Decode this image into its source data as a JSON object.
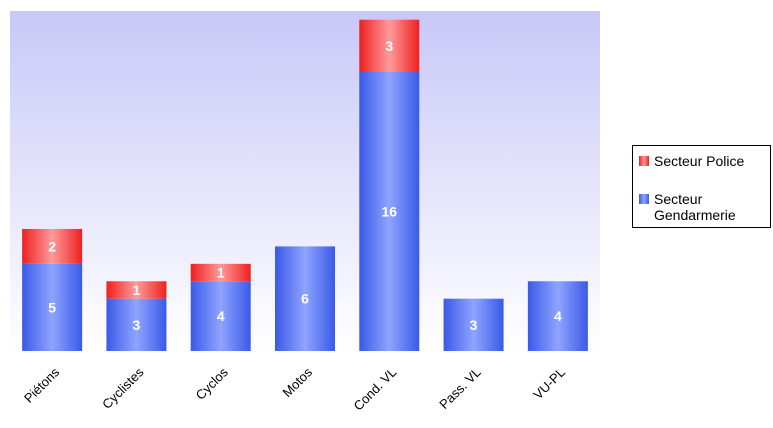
{
  "chart_data": {
    "type": "bar",
    "stacked": true,
    "categories": [
      "Piétons",
      "Cyclistes",
      "Cyclos",
      "Motos",
      "Cond. VL",
      "Pass. VL",
      "VU-PL"
    ],
    "series": [
      {
        "name": "Secteur Gendarmerie",
        "values": [
          5,
          3,
          4,
          6,
          16,
          3,
          4
        ],
        "color": "#4a6cf0"
      },
      {
        "name": "Secteur Police",
        "values": [
          2,
          1,
          1,
          0,
          3,
          0,
          0
        ],
        "color": "#f03a3a"
      }
    ],
    "ylim": [
      0,
      19.5
    ],
    "grid": false,
    "legend_position": "right",
    "plot_background": [
      "#c8c8f8",
      "#ffffff"
    ]
  }
}
